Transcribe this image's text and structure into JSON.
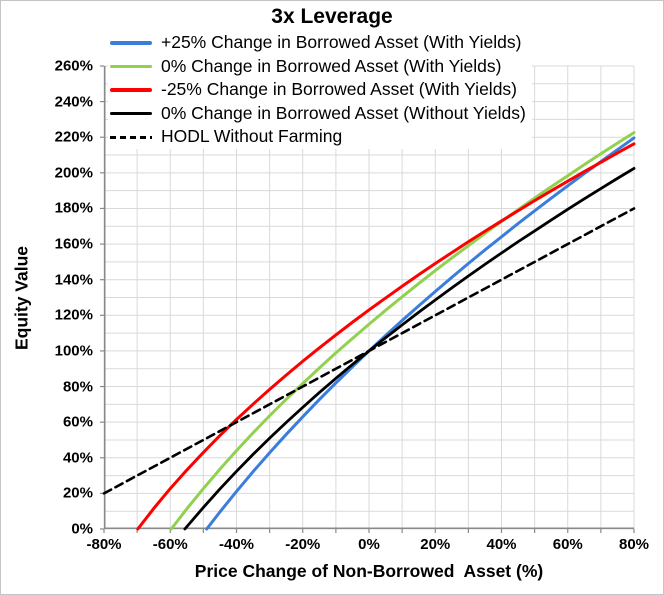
{
  "title": "3x Leverage",
  "colors": {
    "blue_series": "#3B7DDB",
    "green_series": "#92D050",
    "red_series": "#FF0000",
    "black_series": "#000000",
    "gridline": "#D9D9D9",
    "axis_line": "#898989",
    "text": "#000000"
  },
  "chart_data": {
    "type": "line",
    "title": "3x Leverage",
    "xlabel": "Price Change of Non-Borrowed  Asset (%)",
    "ylabel": "Equity Value",
    "xlim": [
      -80,
      80
    ],
    "ylim": [
      0,
      260
    ],
    "grid": true,
    "legend_position": "top-left-overlay",
    "axes": {
      "x": {
        "title": "Price Change of Non-Borrowed  Asset (%)",
        "min": -80,
        "max": 80,
        "grid_step": 10,
        "label_step": 20,
        "tick_labels": [
          "-80%",
          "-60%",
          "-40%",
          "-20%",
          "0%",
          "20%",
          "40%",
          "60%",
          "80%"
        ]
      },
      "y": {
        "title": "Equity Value",
        "min": 0,
        "max": 260,
        "grid_step": 10,
        "label_step": 20,
        "tick_labels": [
          "0%",
          "20%",
          "40%",
          "60%",
          "80%",
          "100%",
          "120%",
          "140%",
          "160%",
          "180%",
          "200%",
          "220%",
          "240%",
          "260%"
        ]
      }
    },
    "series": [
      {
        "name": "+25% Change in Borrowed Asset (With Yields)",
        "color": "#3B7DDB",
        "dash": false,
        "width": 3,
        "points": [
          [
            -49,
            0
          ],
          [
            -45,
            9.6
          ],
          [
            -40,
            21.1
          ],
          [
            -35,
            32.2
          ],
          [
            -30,
            42.8
          ],
          [
            -25,
            53.1
          ],
          [
            -20,
            63
          ],
          [
            -15,
            72.7
          ],
          [
            -10,
            82
          ],
          [
            -5,
            91.1
          ],
          [
            0,
            100
          ],
          [
            5,
            108.6
          ],
          [
            10,
            117.1
          ],
          [
            15,
            125.3
          ],
          [
            20,
            133.4
          ],
          [
            25,
            141.3
          ],
          [
            30,
            149.1
          ],
          [
            35,
            156.7
          ],
          [
            40,
            164.1
          ],
          [
            45,
            171.5
          ],
          [
            50,
            178.7
          ],
          [
            55,
            185.8
          ],
          [
            60,
            192.7
          ],
          [
            65,
            199.6
          ],
          [
            70,
            206.3
          ],
          [
            75,
            213
          ],
          [
            80,
            219.6
          ]
        ]
      },
      {
        "name": "0% Change in Borrowed Asset (With Yields)",
        "color": "#92D050",
        "dash": false,
        "width": 3,
        "points": [
          [
            -59.7,
            0
          ],
          [
            -55,
            11.3
          ],
          [
            -50,
            22.7
          ],
          [
            -45,
            33.6
          ],
          [
            -40,
            44
          ],
          [
            -35,
            54
          ],
          [
            -30,
            63.6
          ],
          [
            -25,
            72.8
          ],
          [
            -20,
            81.7
          ],
          [
            -15,
            90.4
          ],
          [
            -10,
            98.9
          ],
          [
            -5,
            107
          ],
          [
            0,
            115
          ],
          [
            5,
            122.8
          ],
          [
            10,
            130.4
          ],
          [
            15,
            137.8
          ],
          [
            20,
            145.1
          ],
          [
            25,
            152.2
          ],
          [
            30,
            159.1
          ],
          [
            35,
            166
          ],
          [
            40,
            172.7
          ],
          [
            45,
            179.3
          ],
          [
            50,
            185.8
          ],
          [
            55,
            192.2
          ],
          [
            60,
            198.4
          ],
          [
            65,
            204.6
          ],
          [
            70,
            210.7
          ],
          [
            75,
            216.7
          ],
          [
            80,
            222.6
          ]
        ]
      },
      {
        "name": "-25% Change in Borrowed Asset (With Yields)",
        "color": "#FF0000",
        "dash": false,
        "width": 3,
        "points": [
          [
            -69.8,
            0
          ],
          [
            -65,
            11.5
          ],
          [
            -60,
            22.7
          ],
          [
            -55,
            33.1
          ],
          [
            -50,
            43
          ],
          [
            -45,
            52.5
          ],
          [
            -40,
            61.5
          ],
          [
            -35,
            70.1
          ],
          [
            -30,
            78.4
          ],
          [
            -25,
            86.4
          ],
          [
            -20,
            94.2
          ],
          [
            -15,
            101.7
          ],
          [
            -10,
            109
          ],
          [
            -5,
            116.1
          ],
          [
            0,
            123
          ],
          [
            5,
            129.7
          ],
          [
            10,
            136.3
          ],
          [
            15,
            142.8
          ],
          [
            20,
            149.1
          ],
          [
            25,
            155.2
          ],
          [
            30,
            161.3
          ],
          [
            35,
            167.2
          ],
          [
            40,
            173
          ],
          [
            45,
            178.7
          ],
          [
            50,
            184.4
          ],
          [
            55,
            189.9
          ],
          [
            60,
            195.3
          ],
          [
            65,
            200.7
          ],
          [
            70,
            205.9
          ],
          [
            75,
            211.2
          ],
          [
            80,
            216.3
          ]
        ]
      },
      {
        "name": "0% Change in Borrowed Asset (Without Yields)",
        "color": "#000000",
        "dash": false,
        "width": 2.8,
        "points": [
          [
            -55.6,
            0
          ],
          [
            -50,
            12.1
          ],
          [
            -45,
            22.5
          ],
          [
            -40,
            32.4
          ],
          [
            -35,
            41.9
          ],
          [
            -30,
            51
          ],
          [
            -25,
            59.8
          ],
          [
            -20,
            68.3
          ],
          [
            -15,
            76.6
          ],
          [
            -10,
            84.6
          ],
          [
            -5,
            92.4
          ],
          [
            0,
            100
          ],
          [
            5,
            107.4
          ],
          [
            10,
            114.6
          ],
          [
            15,
            121.7
          ],
          [
            20,
            128.6
          ],
          [
            25,
            135.4
          ],
          [
            30,
            142.1
          ],
          [
            35,
            148.6
          ],
          [
            40,
            155
          ],
          [
            45,
            161.3
          ],
          [
            50,
            167.4
          ],
          [
            55,
            173.5
          ],
          [
            60,
            179.5
          ],
          [
            65,
            185.4
          ],
          [
            70,
            191.2
          ],
          [
            75,
            196.9
          ],
          [
            80,
            202.5
          ]
        ]
      },
      {
        "name": "HODL Without Farming",
        "color": "#000000",
        "dash": true,
        "width": 2.6,
        "points": [
          [
            -80,
            20
          ],
          [
            -60,
            40
          ],
          [
            -40,
            60
          ],
          [
            -20,
            80
          ],
          [
            0,
            100
          ],
          [
            20,
            120
          ],
          [
            40,
            140
          ],
          [
            60,
            160
          ],
          [
            80,
            180
          ]
        ]
      }
    ]
  }
}
